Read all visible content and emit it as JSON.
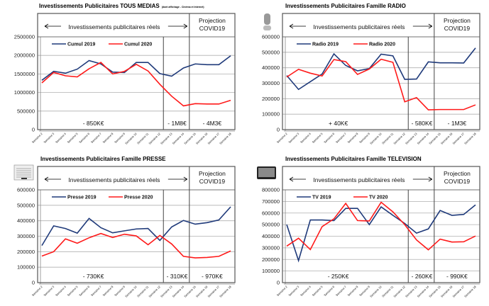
{
  "colors": {
    "y2019": "#1f3a7a",
    "y2020": "#ff1a1a",
    "grid": "#b0b0b0",
    "frame": "#555555"
  },
  "chart_data": [
    {
      "type": "line",
      "title": "Investissements  Publicitaires TOUS MEDIAS",
      "subtitle": "(dont affichage - Cinéma et Internet)",
      "icon": "none",
      "band_label": "Investissements publicitaires réels",
      "projection_label": [
        "Projection",
        "COVID19"
      ],
      "categories": [
        "Semaine 2",
        "Semaine 3",
        "Semaine 4",
        "Semaine 5",
        "Semaine 6",
        "Semaine 7",
        "Semaine 8",
        "Semaine 9",
        "Semaine 10",
        "Semaine 11",
        "Semaine 12",
        "Semaine 13",
        "Semaine 14",
        "Semaine 15",
        "Semaine 16",
        "Semaine 17",
        "Semaine 18"
      ],
      "ylim": [
        0,
        2500000
      ],
      "yticks": [
        0,
        500000,
        1000000,
        1500000,
        2000000,
        2500000
      ],
      "grid": true,
      "legend": "top-left",
      "series": [
        {
          "name": "Cumul 2019",
          "values": [
            1330000,
            1570000,
            1520000,
            1630000,
            1860000,
            1770000,
            1550000,
            1540000,
            1810000,
            1810000,
            1510000,
            1440000,
            1660000,
            1770000,
            1750000,
            1750000,
            1990000
          ]
        },
        {
          "name": "Cumul 2020",
          "values": [
            1260000,
            1540000,
            1450000,
            1420000,
            1640000,
            1810000,
            1500000,
            1570000,
            1760000,
            1580000,
            1220000,
            900000,
            640000,
            700000,
            690000,
            690000,
            790000
          ]
        }
      ],
      "annotations": [
        "- 850K€",
        "- 1M8€",
        "- 4M3€"
      ]
    },
    {
      "type": "line",
      "title": "Investissements Publicitaires Famille RADIO",
      "subtitle": "",
      "icon": "microphone",
      "band_label": "Investissements publicitaires réels",
      "projection_label": [
        "Projection",
        "COVID19"
      ],
      "categories": [
        "Semaine 2",
        "Semaine 3",
        "Semaine 4",
        "Semaine 5",
        "Semaine 6",
        "Semaine 7",
        "Semaine 8",
        "Semaine 9",
        "Semaine 10",
        "Semaine 11",
        "Semaine 12",
        "Semaine 13",
        "Semaine 14",
        "Semaine 15",
        "Semaine 16",
        "Semaine 17",
        "Semaine 18"
      ],
      "ylim": [
        0,
        600000
      ],
      "yticks": [
        0,
        100000,
        200000,
        300000,
        400000,
        500000,
        600000
      ],
      "grid": true,
      "legend": "top-left",
      "series": [
        {
          "name": "Radio 2019",
          "values": [
            350000,
            260000,
            310000,
            360000,
            490000,
            415000,
            380000,
            395000,
            488000,
            477000,
            325000,
            327000,
            438000,
            432000,
            432000,
            431000,
            528000
          ]
        },
        {
          "name": "Radio 2020",
          "values": [
            340000,
            390000,
            365000,
            347000,
            453000,
            440000,
            357000,
            392000,
            455000,
            435000,
            180000,
            207000,
            128000,
            130000,
            130000,
            130000,
            160000
          ]
        }
      ],
      "annotations": [
        "+ 40K€",
        "- 580K€",
        "- 1M3€"
      ]
    },
    {
      "type": "line",
      "title": "Investissements Publicitaires Famille PRESSE",
      "subtitle": "",
      "icon": "newspaper",
      "band_label": "Investissements publicitaires réels",
      "projection_label": [
        "Projection",
        "COVID19"
      ],
      "categories": [
        "Semaine 2",
        "Semaine 3",
        "Semaine 4",
        "Semaine 5",
        "Semaine 6",
        "Semaine 7",
        "Semaine 8",
        "Semaine 9",
        "Semaine 10",
        "Semaine 11",
        "Semaine 12",
        "Semaine 13",
        "Semaine 14",
        "Semaine 15",
        "Semaine 16",
        "Semaine 17",
        "Semaine 18"
      ],
      "ylim": [
        0,
        600000
      ],
      "yticks": [
        0,
        100000,
        200000,
        300000,
        400000,
        500000,
        600000
      ],
      "grid": true,
      "legend": "top-left",
      "series": [
        {
          "name": "Presse 2019",
          "values": [
            240000,
            367000,
            350000,
            320000,
            415000,
            355000,
            322000,
            335000,
            347000,
            350000,
            273000,
            360000,
            402000,
            378000,
            388000,
            405000,
            490000
          ]
        },
        {
          "name": "Presse 2020",
          "values": [
            172000,
            200000,
            283000,
            255000,
            290000,
            318000,
            292000,
            313000,
            302000,
            245000,
            305000,
            250000,
            170000,
            160000,
            163000,
            170000,
            205000
          ]
        }
      ],
      "annotations": [
        "- 730K€",
        "- 310K€",
        "- 970K€"
      ]
    },
    {
      "type": "line",
      "title": "Investissements Publicitaires Famille TELEVISION",
      "subtitle": "",
      "icon": "television",
      "band_label": "Investissements publicitaires réels",
      "projection_label": [
        "Projection",
        "COVID19"
      ],
      "categories": [
        "Semaine 2",
        "Semaine 3",
        "Semaine 4",
        "Semaine 5",
        "Semaine 6",
        "Semaine 7",
        "Semaine 8",
        "Semaine 9",
        "Semaine 10",
        "Semaine 11",
        "Semaine 12",
        "Semaine 13",
        "Semaine 14",
        "Semaine 15",
        "Semaine 16",
        "Semaine 17",
        "Semaine 18"
      ],
      "ylim": [
        0,
        800000
      ],
      "yticks": [
        0,
        100000,
        200000,
        300000,
        400000,
        500000,
        600000,
        700000,
        800000
      ],
      "grid": true,
      "legend": "top-left",
      "series": [
        {
          "name": "TV 2019",
          "values": [
            500000,
            190000,
            540000,
            540000,
            535000,
            640000,
            640000,
            500000,
            653000,
            580000,
            510000,
            427000,
            463000,
            622000,
            580000,
            588000,
            670000
          ]
        },
        {
          "name": "TV 2020",
          "values": [
            315000,
            383000,
            285000,
            483000,
            550000,
            683000,
            535000,
            532000,
            693000,
            610000,
            500000,
            368000,
            283000,
            375000,
            350000,
            352000,
            402000
          ]
        }
      ],
      "annotations": [
        "- 250K€",
        "- 260K€",
        "- 990K€"
      ]
    }
  ]
}
